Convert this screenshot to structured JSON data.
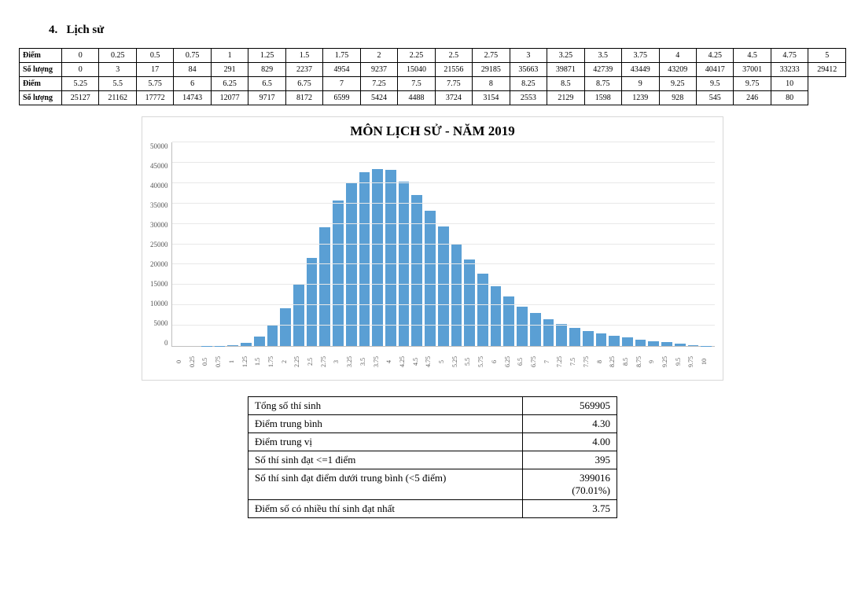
{
  "section": {
    "number": "4.",
    "title": "Lịch sử"
  },
  "table": {
    "row_score_label": "Điểm",
    "row_count_label": "Số lượng",
    "row1_scores": [
      "0",
      "0.25",
      "0.5",
      "0.75",
      "1",
      "1.25",
      "1.5",
      "1.75",
      "2",
      "2.25",
      "2.5",
      "2.75",
      "3",
      "3.25",
      "3.5",
      "3.75",
      "4",
      "4.25",
      "4.5",
      "4.75",
      "5"
    ],
    "row1_counts": [
      "0",
      "3",
      "17",
      "84",
      "291",
      "829",
      "2237",
      "4954",
      "9237",
      "15040",
      "21556",
      "29185",
      "35663",
      "39871",
      "42739",
      "43449",
      "43209",
      "40417",
      "37001",
      "33233",
      "29412"
    ],
    "row2_scores": [
      "5.25",
      "5.5",
      "5.75",
      "6",
      "6.25",
      "6.5",
      "6.75",
      "7",
      "7.25",
      "7.5",
      "7.75",
      "8",
      "8.25",
      "8.5",
      "8.75",
      "9",
      "9.25",
      "9.5",
      "9.75",
      "10"
    ],
    "row2_counts": [
      "25127",
      "21162",
      "17772",
      "14743",
      "12077",
      "9717",
      "8172",
      "6599",
      "5424",
      "4488",
      "3724",
      "3154",
      "2553",
      "2129",
      "1598",
      "1239",
      "928",
      "545",
      "246",
      "80"
    ]
  },
  "chart": {
    "title": "MÔN LỊCH SỬ - NĂM 2019",
    "type": "bar",
    "categories": [
      "0",
      "0.25",
      "0.5",
      "0.75",
      "1",
      "1.25",
      "1.5",
      "1.75",
      "2",
      "2.25",
      "2.5",
      "2.75",
      "3",
      "3.25",
      "3.5",
      "3.75",
      "4",
      "4.25",
      "4.5",
      "4.75",
      "5",
      "5.25",
      "5.5",
      "5.75",
      "6",
      "6.25",
      "6.5",
      "6.75",
      "7",
      "7.25",
      "7.5",
      "7.75",
      "8",
      "8.25",
      "8.5",
      "8.75",
      "9",
      "9.25",
      "9.5",
      "9.75",
      "10"
    ],
    "values": [
      0,
      3,
      17,
      84,
      291,
      829,
      2237,
      4954,
      9237,
      15040,
      21556,
      29185,
      35663,
      39871,
      42739,
      43449,
      43209,
      40417,
      37001,
      33233,
      29412,
      25127,
      21162,
      17772,
      14743,
      12077,
      9717,
      8172,
      6599,
      5424,
      4488,
      3724,
      3154,
      2553,
      2129,
      1598,
      1239,
      928,
      545,
      246,
      80
    ],
    "y_ticks": [
      0,
      5000,
      10000,
      15000,
      20000,
      25000,
      30000,
      35000,
      40000,
      45000,
      50000
    ],
    "y_max": 50000,
    "bar_color": "#5a9fd4",
    "grid_color": "#e8e8e8",
    "axis_color": "#bfbfbf",
    "background_color": "#ffffff",
    "title_fontsize": 17,
    "tick_fontsize": 9
  },
  "stats": {
    "rows": [
      {
        "label": "Tổng số thí sinh",
        "value": "569905"
      },
      {
        "label": "Điểm trung bình",
        "value": "4.30"
      },
      {
        "label": "Điểm trung vị",
        "value": "4.00"
      },
      {
        "label": "Số thí sinh đạt <=1 điểm",
        "value": "395"
      },
      {
        "label": "Số thí sinh đạt điểm dưới trung bình (<5 điểm)",
        "value": "399016\n(70.01%)"
      },
      {
        "label": "Điểm số có nhiều thí sinh đạt nhất",
        "value": "3.75"
      }
    ]
  }
}
